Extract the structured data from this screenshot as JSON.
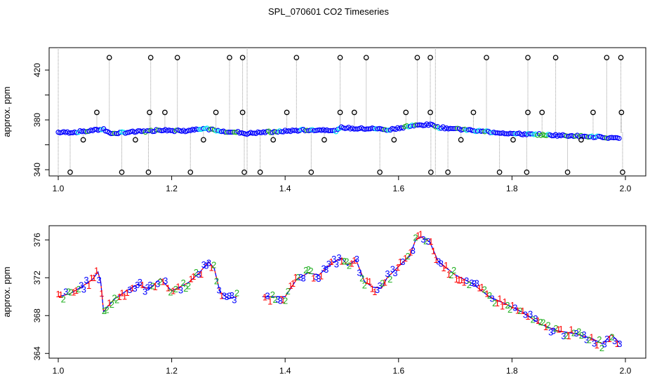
{
  "title": "SPL_070601  CO2 Timeseries",
  "colors": {
    "black": "#000000",
    "blue": "#0000ff",
    "green": "#22b022",
    "red": "#ff0000",
    "cyan": "#00e5ee",
    "grey": "#9a9a9a"
  },
  "chart_data": [
    {
      "type": "scatter",
      "name": "top",
      "ylabel": "approx. ppm",
      "xlim": [
        1.0,
        2.0
      ],
      "ylim": [
        335,
        438
      ],
      "xticks": [
        1.0,
        1.2,
        1.4,
        1.6,
        1.8,
        2.0
      ],
      "xtick_labels": [
        "1.0",
        "1.2",
        "1.4",
        "1.6",
        "1.8",
        "2.0"
      ],
      "yticks": [
        340,
        360,
        380,
        400,
        420
      ],
      "ytick_labels": [
        "340",
        "",
        "380",
        "",
        "420"
      ],
      "baseline": {
        "x": [
          1.0,
          1.02,
          1.05,
          1.07,
          1.08,
          1.09,
          1.12,
          1.16,
          1.18,
          1.22,
          1.26,
          1.29,
          1.32,
          1.33,
          1.36,
          1.4,
          1.44,
          1.48,
          1.49,
          1.5,
          1.52,
          1.56,
          1.58,
          1.62,
          1.64,
          1.66,
          1.67,
          1.72,
          1.8,
          1.86,
          1.92,
          1.96,
          1.99
        ],
        "y": [
          370,
          370,
          371,
          372,
          373,
          369,
          370,
          371,
          372,
          371,
          373,
          371,
          370,
          369,
          370,
          371,
          372,
          372,
          371,
          374,
          373,
          373,
          372,
          375,
          376,
          376,
          374,
          372,
          369,
          368,
          367,
          366,
          365
        ]
      },
      "spikes_high": {
        "x": [
          1.09,
          1.163,
          1.21,
          1.302,
          1.325,
          1.42,
          1.497,
          1.543,
          1.633,
          1.656,
          1.755,
          1.828,
          1.877,
          1.967,
          1.992
        ],
        "y": [
          430,
          430,
          430,
          430,
          430,
          430,
          430,
          430,
          430,
          430,
          430,
          430,
          430,
          430,
          430
        ]
      },
      "spikes_mid": {
        "x": [
          1.068,
          1.161,
          1.188,
          1.278,
          1.325,
          1.403,
          1.497,
          1.522,
          1.613,
          1.656,
          1.732,
          1.828,
          1.853,
          1.943,
          1.993
        ],
        "y": [
          386,
          386,
          386,
          386,
          386,
          386,
          386,
          386,
          386,
          386,
          386,
          386,
          386,
          386,
          386
        ]
      },
      "spikes_low": {
        "x": [
          1.021,
          1.044,
          1.112,
          1.136,
          1.159,
          1.233,
          1.256,
          1.328,
          1.356,
          1.379,
          1.446,
          1.469,
          1.567,
          1.592,
          1.657,
          1.687,
          1.71,
          1.778,
          1.802,
          1.826,
          1.898,
          1.922,
          1.995
        ],
        "y": [
          338,
          364,
          338,
          364,
          338,
          338,
          364,
          338,
          338,
          364,
          338,
          364,
          338,
          364,
          338,
          338,
          364,
          338,
          364,
          338,
          338,
          364,
          338
        ]
      }
    },
    {
      "type": "line",
      "name": "bottom",
      "ylabel": "approx. ppm",
      "xlim": [
        1.0,
        2.0
      ],
      "ylim": [
        363.5,
        377.5
      ],
      "xticks": [
        1.0,
        1.2,
        1.4,
        1.6,
        1.8,
        2.0
      ],
      "xtick_labels": [
        "1.0",
        "1.2",
        "1.4",
        "1.6",
        "1.8",
        "2.0"
      ],
      "yticks": [
        364,
        368,
        372,
        376
      ],
      "ytick_labels": [
        "364",
        "368",
        "372",
        "376"
      ],
      "markers": [
        "1",
        "2",
        "3"
      ],
      "series": {
        "x": [
          1.0,
          1.02,
          1.04,
          1.06,
          1.07,
          1.075,
          1.08,
          1.085,
          1.1,
          1.12,
          1.14,
          1.16,
          1.18,
          1.2,
          1.23,
          1.25,
          1.265,
          1.275,
          1.285,
          1.3,
          1.315,
          1.33,
          1.36,
          1.4,
          1.42,
          1.44,
          1.46,
          1.475,
          1.49,
          1.5,
          1.51,
          1.525,
          1.54,
          1.555,
          1.57,
          1.58,
          1.6,
          1.62,
          1.63,
          1.64,
          1.655,
          1.67,
          1.7,
          1.73,
          1.76,
          1.79,
          1.82,
          1.85,
          1.88,
          1.91,
          1.94,
          1.96,
          1.975,
          1.99
        ],
        "y": [
          370.0,
          370.3,
          371.0,
          371.8,
          372.6,
          371.5,
          368.4,
          368.8,
          369.8,
          370.6,
          371.3,
          370.8,
          371.9,
          370.6,
          371.5,
          372.6,
          373.7,
          373.0,
          370.5,
          369.8,
          370.0,
          null,
          370.0,
          370.0,
          371.8,
          372.5,
          372.3,
          373.2,
          373.8,
          374.1,
          373.3,
          373.9,
          371.6,
          371.0,
          370.9,
          372.0,
          373.2,
          374.3,
          376.0,
          376.3,
          375.8,
          373.7,
          372.3,
          371.4,
          370.0,
          369.2,
          368.3,
          367.1,
          366.4,
          366.1,
          365.6,
          365.0,
          366.0,
          365.1
        ]
      }
    }
  ]
}
